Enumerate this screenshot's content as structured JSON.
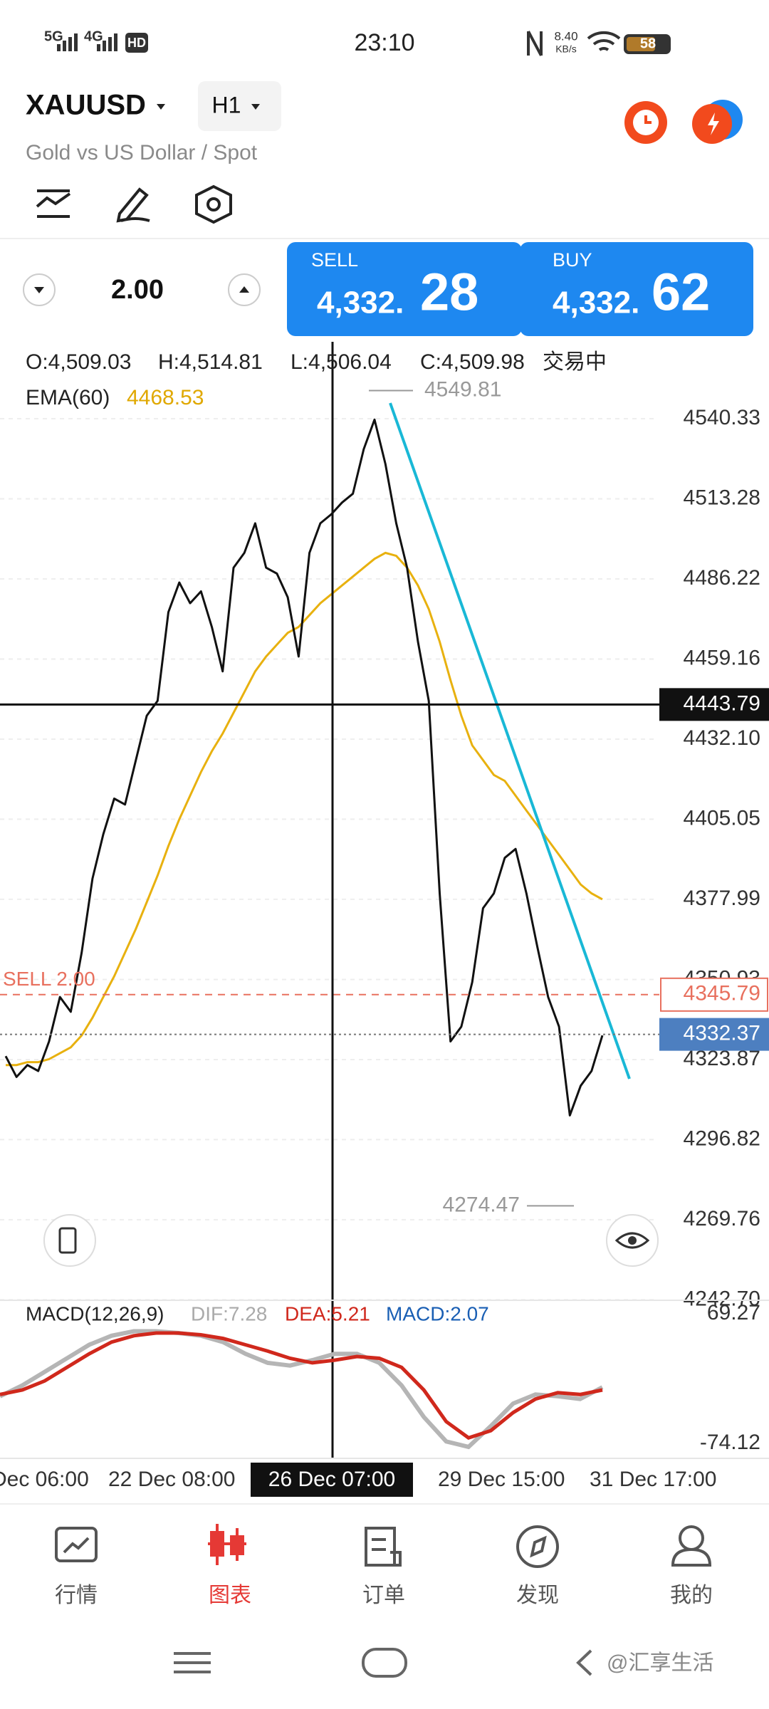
{
  "status_bar": {
    "network1": "5G",
    "network2": "4G",
    "hd": "HD",
    "time": "23:10",
    "speed": "8.40",
    "speed_unit": "KB/s",
    "battery": "58"
  },
  "header": {
    "symbol": "XAUUSD",
    "timeframe": "H1",
    "subtitle": "Gold vs US Dollar / Spot"
  },
  "trade": {
    "lot": "2.00",
    "sell_label": "SELL",
    "sell_price_main": "4,332.",
    "sell_price_big": "28",
    "buy_label": "BUY",
    "buy_price_main": "4,332.",
    "buy_price_big": "62"
  },
  "ohlc": {
    "open": "O:4,509.03",
    "high": "H:4,514.81",
    "low": "L:4,506.04",
    "close": "C:4,509.98",
    "status": "交易中"
  },
  "ema": {
    "label": "EMA(60)",
    "value": "4468.53"
  },
  "price_chart": {
    "ylim": [
      4241.6,
      4566.3
    ],
    "yticks": [
      4540.33,
      4513.28,
      4486.22,
      4459.16,
      {
        "value": 4432.1,
        "label": "4432.10"
      },
      4405.05,
      4377.99,
      4350.93,
      4323.87,
      4296.82,
      4269.76,
      {
        "value": 4242.7,
        "label": "4242.70"
      }
    ],
    "crosshair_price": 4443.79,
    "sell_order": {
      "label": "SELL 2.00",
      "price": 4345.79
    },
    "current_price": 4332.37,
    "high_marker": 4549.81,
    "low_marker": 4274.47,
    "close": [
      4325,
      4318,
      4322,
      4320,
      4330,
      4345,
      4340,
      4360,
      4385,
      4400,
      4412,
      4410,
      4425,
      4440,
      4445,
      4475,
      4485,
      4478,
      4482,
      4470,
      4455,
      4490,
      4495,
      4505,
      4490,
      4488,
      4480,
      4460,
      4495,
      4505,
      4508,
      4512,
      4515,
      4530,
      4540,
      4525,
      4505,
      4490,
      4465,
      4445,
      4380,
      4330,
      4335,
      4350,
      4375,
      4380,
      4392,
      4395,
      4380,
      4362,
      4345,
      4335,
      4305,
      4315,
      4320,
      4332
    ],
    "ema_values": [
      4322,
      4322,
      4323,
      4323,
      4324,
      4326,
      4328,
      4332,
      4338,
      4345,
      4352,
      4360,
      4368,
      4377,
      4386,
      4396,
      4405,
      4413,
      4421,
      4428,
      4434,
      4441,
      4448,
      4455,
      4460,
      4464,
      4468,
      4470,
      4474,
      4478,
      4481,
      4484,
      4487,
      4490,
      4493,
      4495,
      4494,
      4490,
      4484,
      4476,
      4465,
      4452,
      4440,
      4430,
      4425,
      4420,
      4418,
      4413,
      4408,
      4403,
      4398,
      4393,
      4388,
      4383,
      4380,
      4378
    ]
  },
  "macd": {
    "label": "MACD(12,26,9)",
    "dif": "DIF:7.28",
    "dea": "DEA:5.21",
    "macd": "MACD:2.07",
    "ylim": [
      -74.12,
      69.27
    ],
    "yticks": [
      69.27,
      -74.12
    ],
    "dif_values": [
      -22,
      -10,
      5,
      20,
      35,
      45,
      50,
      50,
      48,
      45,
      38,
      25,
      15,
      12,
      18,
      25,
      25,
      15,
      -10,
      -45,
      -72,
      -78,
      -55,
      -30,
      -20,
      -22,
      -25,
      -12
    ],
    "dea_values": [
      -20,
      -15,
      -5,
      10,
      25,
      38,
      45,
      48,
      48,
      46,
      42,
      35,
      28,
      20,
      15,
      18,
      22,
      20,
      10,
      -15,
      -50,
      -68,
      -60,
      -40,
      -25,
      -18,
      -20,
      -15
    ]
  },
  "time_axis": {
    "labels": [
      "Dec 06:00",
      "22 Dec 08:00",
      "26 Dec 07:00",
      "29 Dec 15:00",
      "31 Dec 17:00"
    ]
  },
  "nav": {
    "items": [
      "行情",
      "图表",
      "订单",
      "发现",
      "我的"
    ]
  },
  "watermark": "@汇享生活"
}
